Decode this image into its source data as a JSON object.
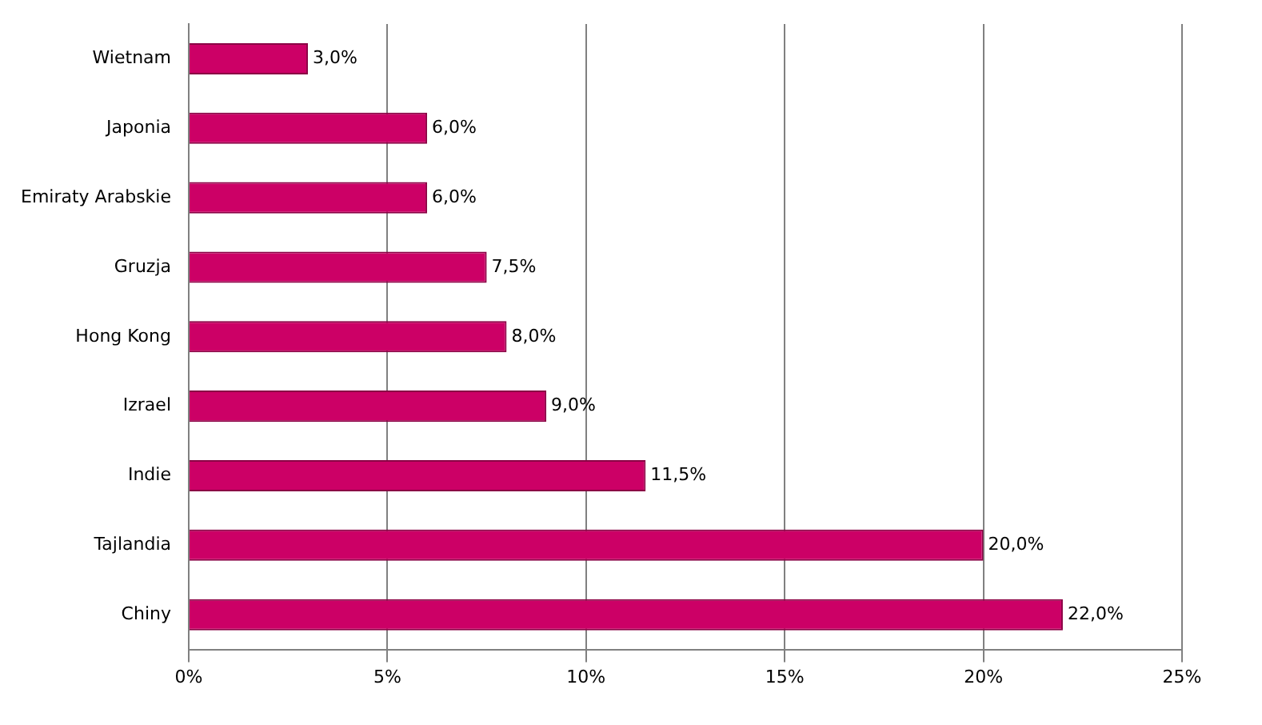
{
  "chart_data": {
    "type": "bar",
    "orientation": "horizontal",
    "categories": [
      "Wietnam",
      "Japonia",
      "Emiraty Arabskie",
      "Gruzja",
      "Hong Kong",
      "Izrael",
      "Indie",
      "Tajlandia",
      "Chiny"
    ],
    "values": [
      3.0,
      6.0,
      6.0,
      7.5,
      8.0,
      9.0,
      11.5,
      20.0,
      22.0
    ],
    "value_labels": [
      "3,0%",
      "6,0%",
      "6,0%",
      "7,5%",
      "8,0%",
      "9,0%",
      "11,5%",
      "20,0%",
      "22,0%"
    ],
    "color": "#cc0066",
    "xlim": [
      0,
      25
    ],
    "xticks": [
      {
        "value": 0,
        "label": "0%"
      },
      {
        "value": 5,
        "label": "5%"
      },
      {
        "value": 10,
        "label": "10%"
      },
      {
        "value": 15,
        "label": "15%"
      },
      {
        "value": 20,
        "label": "20%"
      },
      {
        "value": 25,
        "label": "25%"
      }
    ],
    "grid": "x",
    "legend": false
  }
}
